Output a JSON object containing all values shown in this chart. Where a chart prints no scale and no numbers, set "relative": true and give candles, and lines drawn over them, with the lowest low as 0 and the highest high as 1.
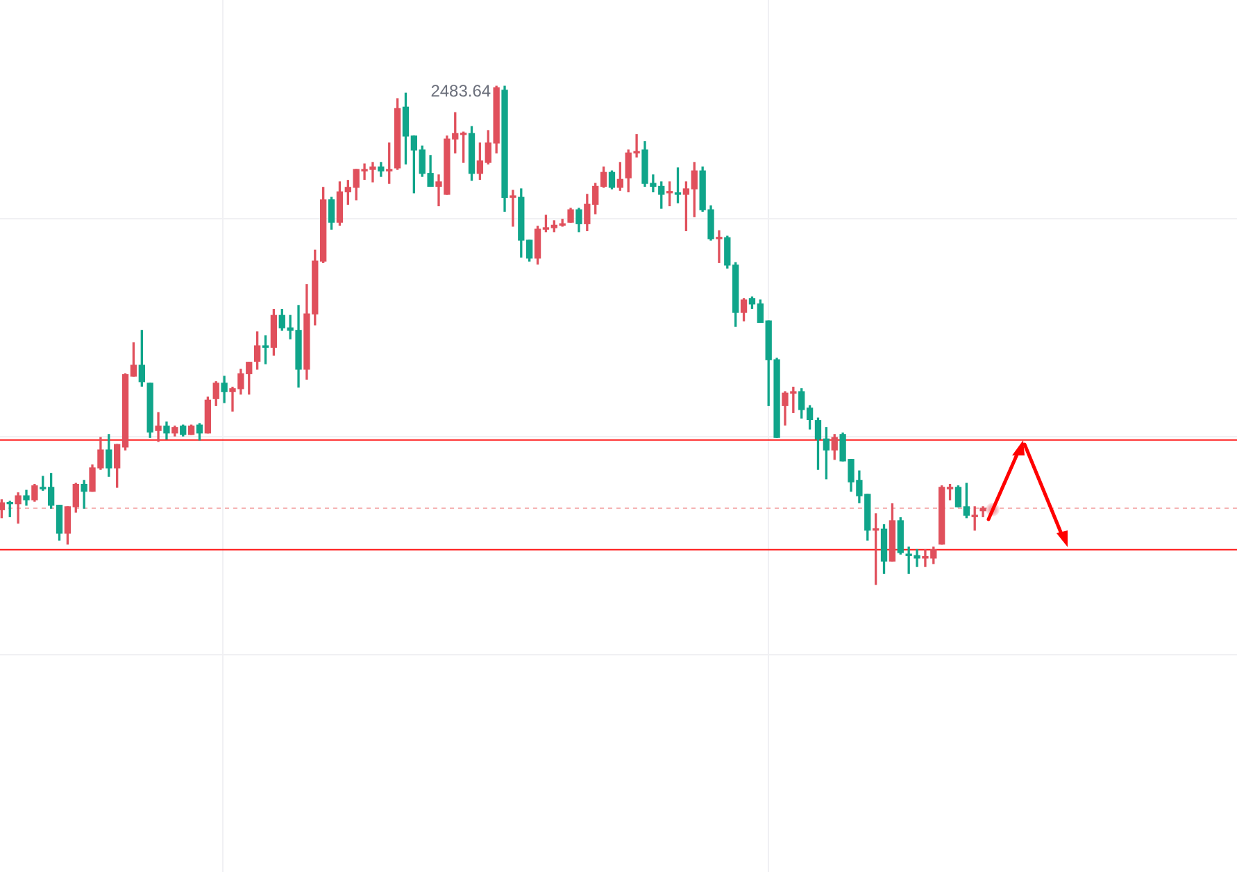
{
  "chart_data": {
    "type": "candlestick",
    "relative": true,
    "grid": true,
    "legend": false,
    "annotations": [
      "2483.64"
    ],
    "categories": [
      null,
      null,
      null,
      null,
      null,
      null,
      null,
      null,
      null,
      null,
      null,
      null,
      null,
      null,
      null,
      null,
      null,
      null,
      null,
      null,
      null,
      null,
      null,
      null,
      null,
      null,
      null,
      null,
      null,
      null,
      null,
      null,
      null,
      null,
      null,
      null,
      null,
      null,
      null,
      null,
      null,
      null,
      null,
      null,
      null,
      null,
      null,
      null,
      null,
      null,
      null,
      null,
      null,
      null,
      null,
      null,
      null,
      null,
      null,
      null,
      null,
      null,
      null,
      null,
      null,
      null,
      null,
      null,
      null,
      null,
      null,
      null,
      null,
      null,
      null,
      null,
      null,
      null,
      null,
      null,
      null,
      null,
      null,
      null,
      null,
      null,
      null,
      null,
      null,
      null,
      null,
      null,
      null,
      null,
      null,
      null,
      null,
      null,
      null,
      null,
      null,
      null,
      null,
      null,
      null,
      null,
      null,
      null,
      null,
      null,
      null,
      null,
      null,
      null,
      null,
      null,
      null,
      null,
      null,
      null
    ],
    "ohlc": [
      [
        0.15,
        0.17,
        0.134,
        0.164
      ],
      [
        0.164,
        0.167,
        0.136,
        0.162
      ],
      [
        0.162,
        0.184,
        0.123,
        0.178
      ],
      [
        0.178,
        0.189,
        0.159,
        0.17
      ],
      [
        0.17,
        0.201,
        0.167,
        0.198
      ],
      [
        0.195,
        0.217,
        0.189,
        0.192
      ],
      [
        0.195,
        0.223,
        0.153,
        0.159
      ],
      [
        0.159,
        0.159,
        0.089,
        0.103
      ],
      [
        0.103,
        0.156,
        0.081,
        0.156
      ],
      [
        0.156,
        0.203,
        0.145,
        0.201
      ],
      [
        0.201,
        0.209,
        0.153,
        0.187
      ],
      [
        0.187,
        0.24,
        0.187,
        0.234
      ],
      [
        0.234,
        0.295,
        0.231,
        0.27
      ],
      [
        0.27,
        0.301,
        0.217,
        0.234
      ],
      [
        0.234,
        0.281,
        0.195,
        0.281
      ],
      [
        0.276,
        0.423,
        0.27,
        0.421
      ],
      [
        0.418,
        0.485,
        0.418,
        0.44
      ],
      [
        0.44,
        0.51,
        0.398,
        0.407
      ],
      [
        0.404,
        0.404,
        0.295,
        0.306
      ],
      [
        0.309,
        0.345,
        0.287,
        0.318
      ],
      [
        0.318,
        0.326,
        0.292,
        0.304
      ],
      [
        0.304,
        0.318,
        0.298,
        0.315
      ],
      [
        0.318,
        0.32,
        0.298,
        0.301
      ],
      [
        0.301,
        0.32,
        0.301,
        0.318
      ],
      [
        0.32,
        0.323,
        0.29,
        0.304
      ],
      [
        0.304,
        0.376,
        0.304,
        0.37
      ],
      [
        0.373,
        0.407,
        0.359,
        0.404
      ],
      [
        0.404,
        0.418,
        0.365,
        0.387
      ],
      [
        0.387,
        0.396,
        0.348,
        0.393
      ],
      [
        0.393,
        0.432,
        0.382,
        0.423
      ],
      [
        0.423,
        0.446,
        0.382,
        0.446
      ],
      [
        0.448,
        0.507,
        0.432,
        0.479
      ],
      [
        0.479,
        0.499,
        0.443,
        0.476
      ],
      [
        0.476,
        0.552,
        0.46,
        0.54
      ],
      [
        0.54,
        0.552,
        0.51,
        0.515
      ],
      [
        0.515,
        0.54,
        0.493,
        0.51
      ],
      [
        0.51,
        0.56,
        0.396,
        0.432
      ],
      [
        0.432,
        0.602,
        0.412,
        0.543
      ],
      [
        0.543,
        0.671,
        0.521,
        0.649
      ],
      [
        0.649,
        0.797,
        0.646,
        0.772
      ],
      [
        0.772,
        0.777,
        0.713,
        0.727
      ],
      [
        0.727,
        0.808,
        0.721,
        0.788
      ],
      [
        0.788,
        0.811,
        0.763,
        0.797
      ],
      [
        0.797,
        0.833,
        0.772,
        0.833
      ],
      [
        0.83,
        0.844,
        0.813,
        0.833
      ],
      [
        0.833,
        0.847,
        0.808,
        0.838
      ],
      [
        0.838,
        0.847,
        0.819,
        0.83
      ],
      [
        0.83,
        0.886,
        0.805,
        0.833
      ],
      [
        0.836,
        0.975,
        0.833,
        0.955
      ],
      [
        0.958,
        0.986,
        0.844,
        0.9
      ],
      [
        0.9,
        0.9,
        0.786,
        0.872
      ],
      [
        0.872,
        0.88,
        0.819,
        0.825
      ],
      [
        0.825,
        0.861,
        0.799,
        0.799
      ],
      [
        0.799,
        0.822,
        0.76,
        0.808
      ],
      [
        0.783,
        0.9,
        0.783,
        0.894
      ],
      [
        0.894,
        0.947,
        0.866,
        0.905
      ],
      [
        0.903,
        0.908,
        0.847,
        0.905
      ],
      [
        0.905,
        0.919,
        0.811,
        0.825
      ],
      [
        0.825,
        0.886,
        0.813,
        0.85
      ],
      [
        0.847,
        0.911,
        0.844,
        0.886
      ],
      [
        0.886,
        1,
        0.866,
        0.997
      ],
      [
        0.992,
        1,
        0.749,
        0.777
      ],
      [
        0.777,
        0.791,
        0.719,
        0.78
      ],
      [
        0.777,
        0.794,
        0.657,
        0.691
      ],
      [
        0.691,
        0.691,
        0.649,
        0.655
      ],
      [
        0.655,
        0.719,
        0.643,
        0.713
      ],
      [
        0.713,
        0.741,
        0.708,
        0.716
      ],
      [
        0.716,
        0.73,
        0.708,
        0.721
      ],
      [
        0.721,
        0.733,
        0.719,
        0.724
      ],
      [
        0.727,
        0.755,
        0.727,
        0.752
      ],
      [
        0.752,
        0.755,
        0.708,
        0.724
      ],
      [
        0.724,
        0.783,
        0.71,
        0.763
      ],
      [
        0.763,
        0.805,
        0.744,
        0.799
      ],
      [
        0.799,
        0.838,
        0.797,
        0.827
      ],
      [
        0.827,
        0.83,
        0.794,
        0.797
      ],
      [
        0.797,
        0.847,
        0.791,
        0.813
      ],
      [
        0.816,
        0.872,
        0.788,
        0.866
      ],
      [
        0.866,
        0.903,
        0.858,
        0.869
      ],
      [
        0.872,
        0.889,
        0.799,
        0.805
      ],
      [
        0.805,
        0.822,
        0.788,
        0.799
      ],
      [
        0.799,
        0.808,
        0.755,
        0.783
      ],
      [
        0.786,
        0.808,
        0.76,
        0.788
      ],
      [
        0.786,
        0.836,
        0.766,
        0.783
      ],
      [
        0.783,
        0.808,
        0.71,
        0.794
      ],
      [
        0.794,
        0.847,
        0.738,
        0.83
      ],
      [
        0.83,
        0.838,
        0.749,
        0.752
      ],
      [
        0.752,
        0.76,
        0.691,
        0.694
      ],
      [
        0.694,
        0.71,
        0.646,
        0.696
      ],
      [
        0.696,
        0.699,
        0.635,
        0.641
      ],
      [
        0.641,
        0.646,
        0.518,
        0.546
      ],
      [
        0.546,
        0.574,
        0.529,
        0.571
      ],
      [
        0.574,
        0.577,
        0.554,
        0.563
      ],
      [
        0.563,
        0.571,
        0.526,
        0.526
      ],
      [
        0.529,
        0.529,
        0.359,
        0.451
      ],
      [
        0.451,
        0.454,
        0.295,
        0.295
      ],
      [
        0.359,
        0.387,
        0.32,
        0.384
      ],
      [
        0.384,
        0.396,
        0.345,
        0.387
      ],
      [
        0.387,
        0.393,
        0.334,
        0.351
      ],
      [
        0.354,
        0.359,
        0.312,
        0.331
      ],
      [
        0.329,
        0.334,
        0.231,
        0.292
      ],
      [
        0.292,
        0.315,
        0.212,
        0.27
      ],
      [
        0.27,
        0.301,
        0.251,
        0.295
      ],
      [
        0.301,
        0.304,
        0.248,
        0.248
      ],
      [
        0.251,
        0.251,
        0.187,
        0.206
      ],
      [
        0.209,
        0.228,
        0.164,
        0.178
      ],
      [
        0.181,
        0.181,
        0.089,
        0.109
      ],
      [
        0.109,
        0.142,
        0,
        0.111
      ],
      [
        0.111,
        0.12,
        0.022,
        0.047
      ],
      [
        0.047,
        0.162,
        0.047,
        0.128
      ],
      [
        0.128,
        0.134,
        0.061,
        0.064
      ],
      [
        0.061,
        0.075,
        0.022,
        0.058
      ],
      [
        0.058,
        0.07,
        0.036,
        0.053
      ],
      [
        0.053,
        0.07,
        0.036,
        0.056
      ],
      [
        0.053,
        0.075,
        0.042,
        0.07
      ],
      [
        0.081,
        0.198,
        0.081,
        0.195
      ],
      [
        0.192,
        0.201,
        0.17,
        0.195
      ],
      [
        0.195,
        0.198,
        0.156,
        0.156
      ],
      [
        0.156,
        0.203,
        0.134,
        0.139
      ],
      [
        0.136,
        0.156,
        0.109,
        0.139
      ],
      [
        0.148,
        0.156,
        0.136,
        0.153
      ]
    ],
    "colors": [
      "#e0505c",
      "#10a58a",
      "#e0505c",
      "#10a58a",
      "#e0505c",
      "#10a58a",
      "#10a58a",
      "#10a58a",
      "#e0505c",
      "#e0505c",
      "#10a58a",
      "#e0505c",
      "#e0505c",
      "#10a58a",
      "#e0505c",
      "#e0505c",
      "#e0505c",
      "#10a58a",
      "#10a58a",
      "#e0505c",
      "#10a58a",
      "#e0505c",
      "#10a58a",
      "#e0505c",
      "#10a58a",
      "#e0505c",
      "#e0505c",
      "#10a58a",
      "#e0505c",
      "#e0505c",
      "#e0505c",
      "#e0505c",
      "#10a58a",
      "#e0505c",
      "#10a58a",
      "#10a58a",
      "#10a58a",
      "#e0505c",
      "#e0505c",
      "#e0505c",
      "#10a58a",
      "#e0505c",
      "#e0505c",
      "#e0505c",
      "#e0505c",
      "#e0505c",
      "#10a58a",
      "#e0505c",
      "#e0505c",
      "#10a58a",
      "#10a58a",
      "#10a58a",
      "#10a58a",
      "#e0505c",
      "#e0505c",
      "#e0505c",
      "#e0505c",
      "#10a58a",
      "#e0505c",
      "#e0505c",
      "#e0505c",
      "#10a58a",
      "#e0505c",
      "#10a58a",
      "#10a58a",
      "#e0505c",
      "#e0505c",
      "#e0505c",
      "#e0505c",
      "#e0505c",
      "#10a58a",
      "#e0505c",
      "#e0505c",
      "#e0505c",
      "#10a58a",
      "#e0505c",
      "#e0505c",
      "#e0505c",
      "#10a58a",
      "#10a58a",
      "#10a58a",
      "#e0505c",
      "#10a58a",
      "#e0505c",
      "#e0505c",
      "#10a58a",
      "#10a58a",
      "#e0505c",
      "#10a58a",
      "#10a58a",
      "#e0505c",
      "#10a58a",
      "#10a58a",
      "#10a58a",
      "#10a58a",
      "#e0505c",
      "#e0505c",
      "#10a58a",
      "#10a58a",
      "#10a58a",
      "#10a58a",
      "#e0505c",
      "#10a58a",
      "#10a58a",
      "#10a58a",
      "#10a58a",
      "#e0505c",
      "#10a58a",
      "#e0505c",
      "#10a58a",
      "#10a58a",
      "#10a58a",
      "#e0505c",
      "#e0505c",
      "#e0505c",
      "#e0505c",
      "#10a58a",
      "#10a58a",
      "#e0505c",
      "#e0505c"
    ],
    "ref_lines": [
      {
        "axis": "y",
        "value": 0.29,
        "color": "#ff1a1a",
        "line_style": "solid"
      },
      {
        "axis": "y",
        "value": 0.07,
        "color": "#ff1a1a",
        "line_style": "solid"
      },
      {
        "axis": "y",
        "value": 0.153,
        "color": "#f5b3b3",
        "line_style": "dotted"
      }
    ]
  }
}
